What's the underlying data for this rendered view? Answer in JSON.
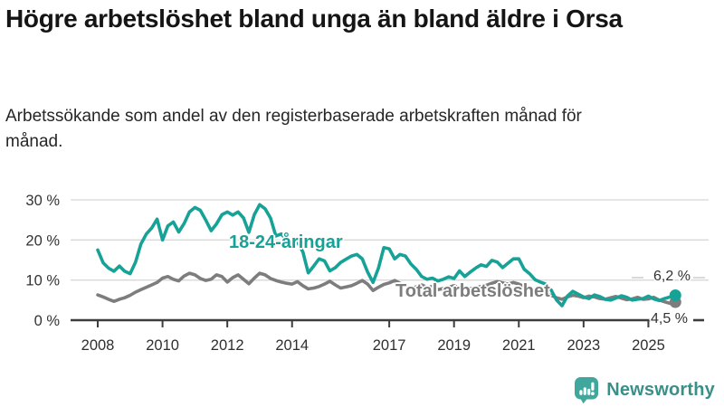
{
  "chart_data": {
    "type": "line",
    "title": "Högre arbetslöshet bland unga än bland äldre i Orsa",
    "subtitle": "Arbetssökande som andel av den registerbaserade arbetskraften månad för månad.",
    "unit": "%",
    "grid": true,
    "legend_position": "inline-labels",
    "xlim": [
      2008,
      2026
    ],
    "ylim": [
      0,
      30
    ],
    "x_ticks": [
      2008,
      2010,
      2012,
      2014,
      2017,
      2019,
      2021,
      2023,
      2025
    ],
    "y_tick_values": [
      0,
      10,
      20,
      30
    ],
    "y_tick_labels": [
      "0 %",
      "10 %",
      "20 %",
      "30 %"
    ],
    "x_start": 2008.0,
    "x_step_months": 2,
    "series": [
      {
        "name": "18-24-åringar",
        "color": "#16a296",
        "end_label": "6,2 %",
        "end_value": 6.2,
        "values": [
          17.5,
          14.3,
          13.0,
          12.2,
          13.5,
          12.2,
          11.6,
          14.5,
          19.0,
          21.5,
          23.0,
          25.2,
          20.0,
          23.5,
          24.5,
          22.0,
          24.1,
          27.0,
          28.1,
          27.4,
          25.0,
          22.3,
          24.0,
          26.3,
          27.0,
          26.2,
          27.0,
          25.5,
          21.9,
          26.3,
          28.8,
          27.8,
          25.5,
          21.0,
          21.5,
          20.0,
          19.3,
          19.5,
          17.0,
          11.8,
          13.5,
          15.3,
          14.8,
          12.3,
          13.1,
          14.4,
          15.2,
          16.0,
          16.4,
          15.3,
          12.0,
          9.4,
          13.0,
          18.1,
          17.8,
          15.3,
          16.4,
          16.0,
          14.0,
          12.7,
          10.9,
          10.2,
          10.5,
          9.8,
          10.2,
          10.8,
          10.4,
          12.3,
          10.9,
          12.0,
          13.0,
          13.8,
          13.4,
          14.9,
          14.5,
          13.1,
          14.2,
          15.3,
          15.3,
          12.7,
          11.6,
          10.1,
          9.5,
          9.0,
          7.5,
          5.0,
          3.6,
          6.0,
          7.2,
          6.5,
          5.8,
          5.4,
          6.3,
          5.9,
          5.2,
          5.0,
          5.5,
          6.1,
          5.7,
          5.0,
          5.2,
          5.4,
          6.0,
          5.3,
          4.9,
          5.4,
          5.8,
          6.2
        ]
      },
      {
        "name": "Total arbetslöshet",
        "color": "#7d7d7d",
        "end_label": "4,5 %",
        "end_value": 4.5,
        "values": [
          6.3,
          5.8,
          5.2,
          4.7,
          5.2,
          5.6,
          6.2,
          7.0,
          7.6,
          8.2,
          8.8,
          9.4,
          10.5,
          10.9,
          10.2,
          9.8,
          11.0,
          11.7,
          11.3,
          10.4,
          9.9,
          10.2,
          11.3,
          10.9,
          9.5,
          10.6,
          11.3,
          10.2,
          9.1,
          10.5,
          11.7,
          11.3,
          10.4,
          9.9,
          9.5,
          9.2,
          9.0,
          9.6,
          8.6,
          7.8,
          8.0,
          8.4,
          9.0,
          9.7,
          8.8,
          8.0,
          8.3,
          8.6,
          9.2,
          9.9,
          9.0,
          7.4,
          8.2,
          8.9,
          9.3,
          9.9,
          9.2,
          8.5,
          8.0,
          8.3,
          8.8,
          8.2,
          8.4,
          7.6,
          7.9,
          8.2,
          8.6,
          8.0,
          7.7,
          7.9,
          8.1,
          8.4,
          8.7,
          9.2,
          9.6,
          9.3,
          9.0,
          9.4,
          9.0,
          8.4,
          7.8,
          7.2,
          6.8,
          6.4,
          6.2,
          5.6,
          5.2,
          5.8,
          6.2,
          6.0,
          5.6,
          6.0,
          5.8,
          5.4,
          5.2,
          5.6,
          5.9,
          5.5,
          5.1,
          5.3,
          5.7,
          5.2,
          5.3,
          5.7,
          5.0,
          4.6,
          4.2,
          4.5
        ]
      }
    ]
  },
  "branding": {
    "logo_text": "Newsworthy",
    "brand_icon_color": "#3fa79b",
    "brand_text_color": "#3a8f89"
  }
}
